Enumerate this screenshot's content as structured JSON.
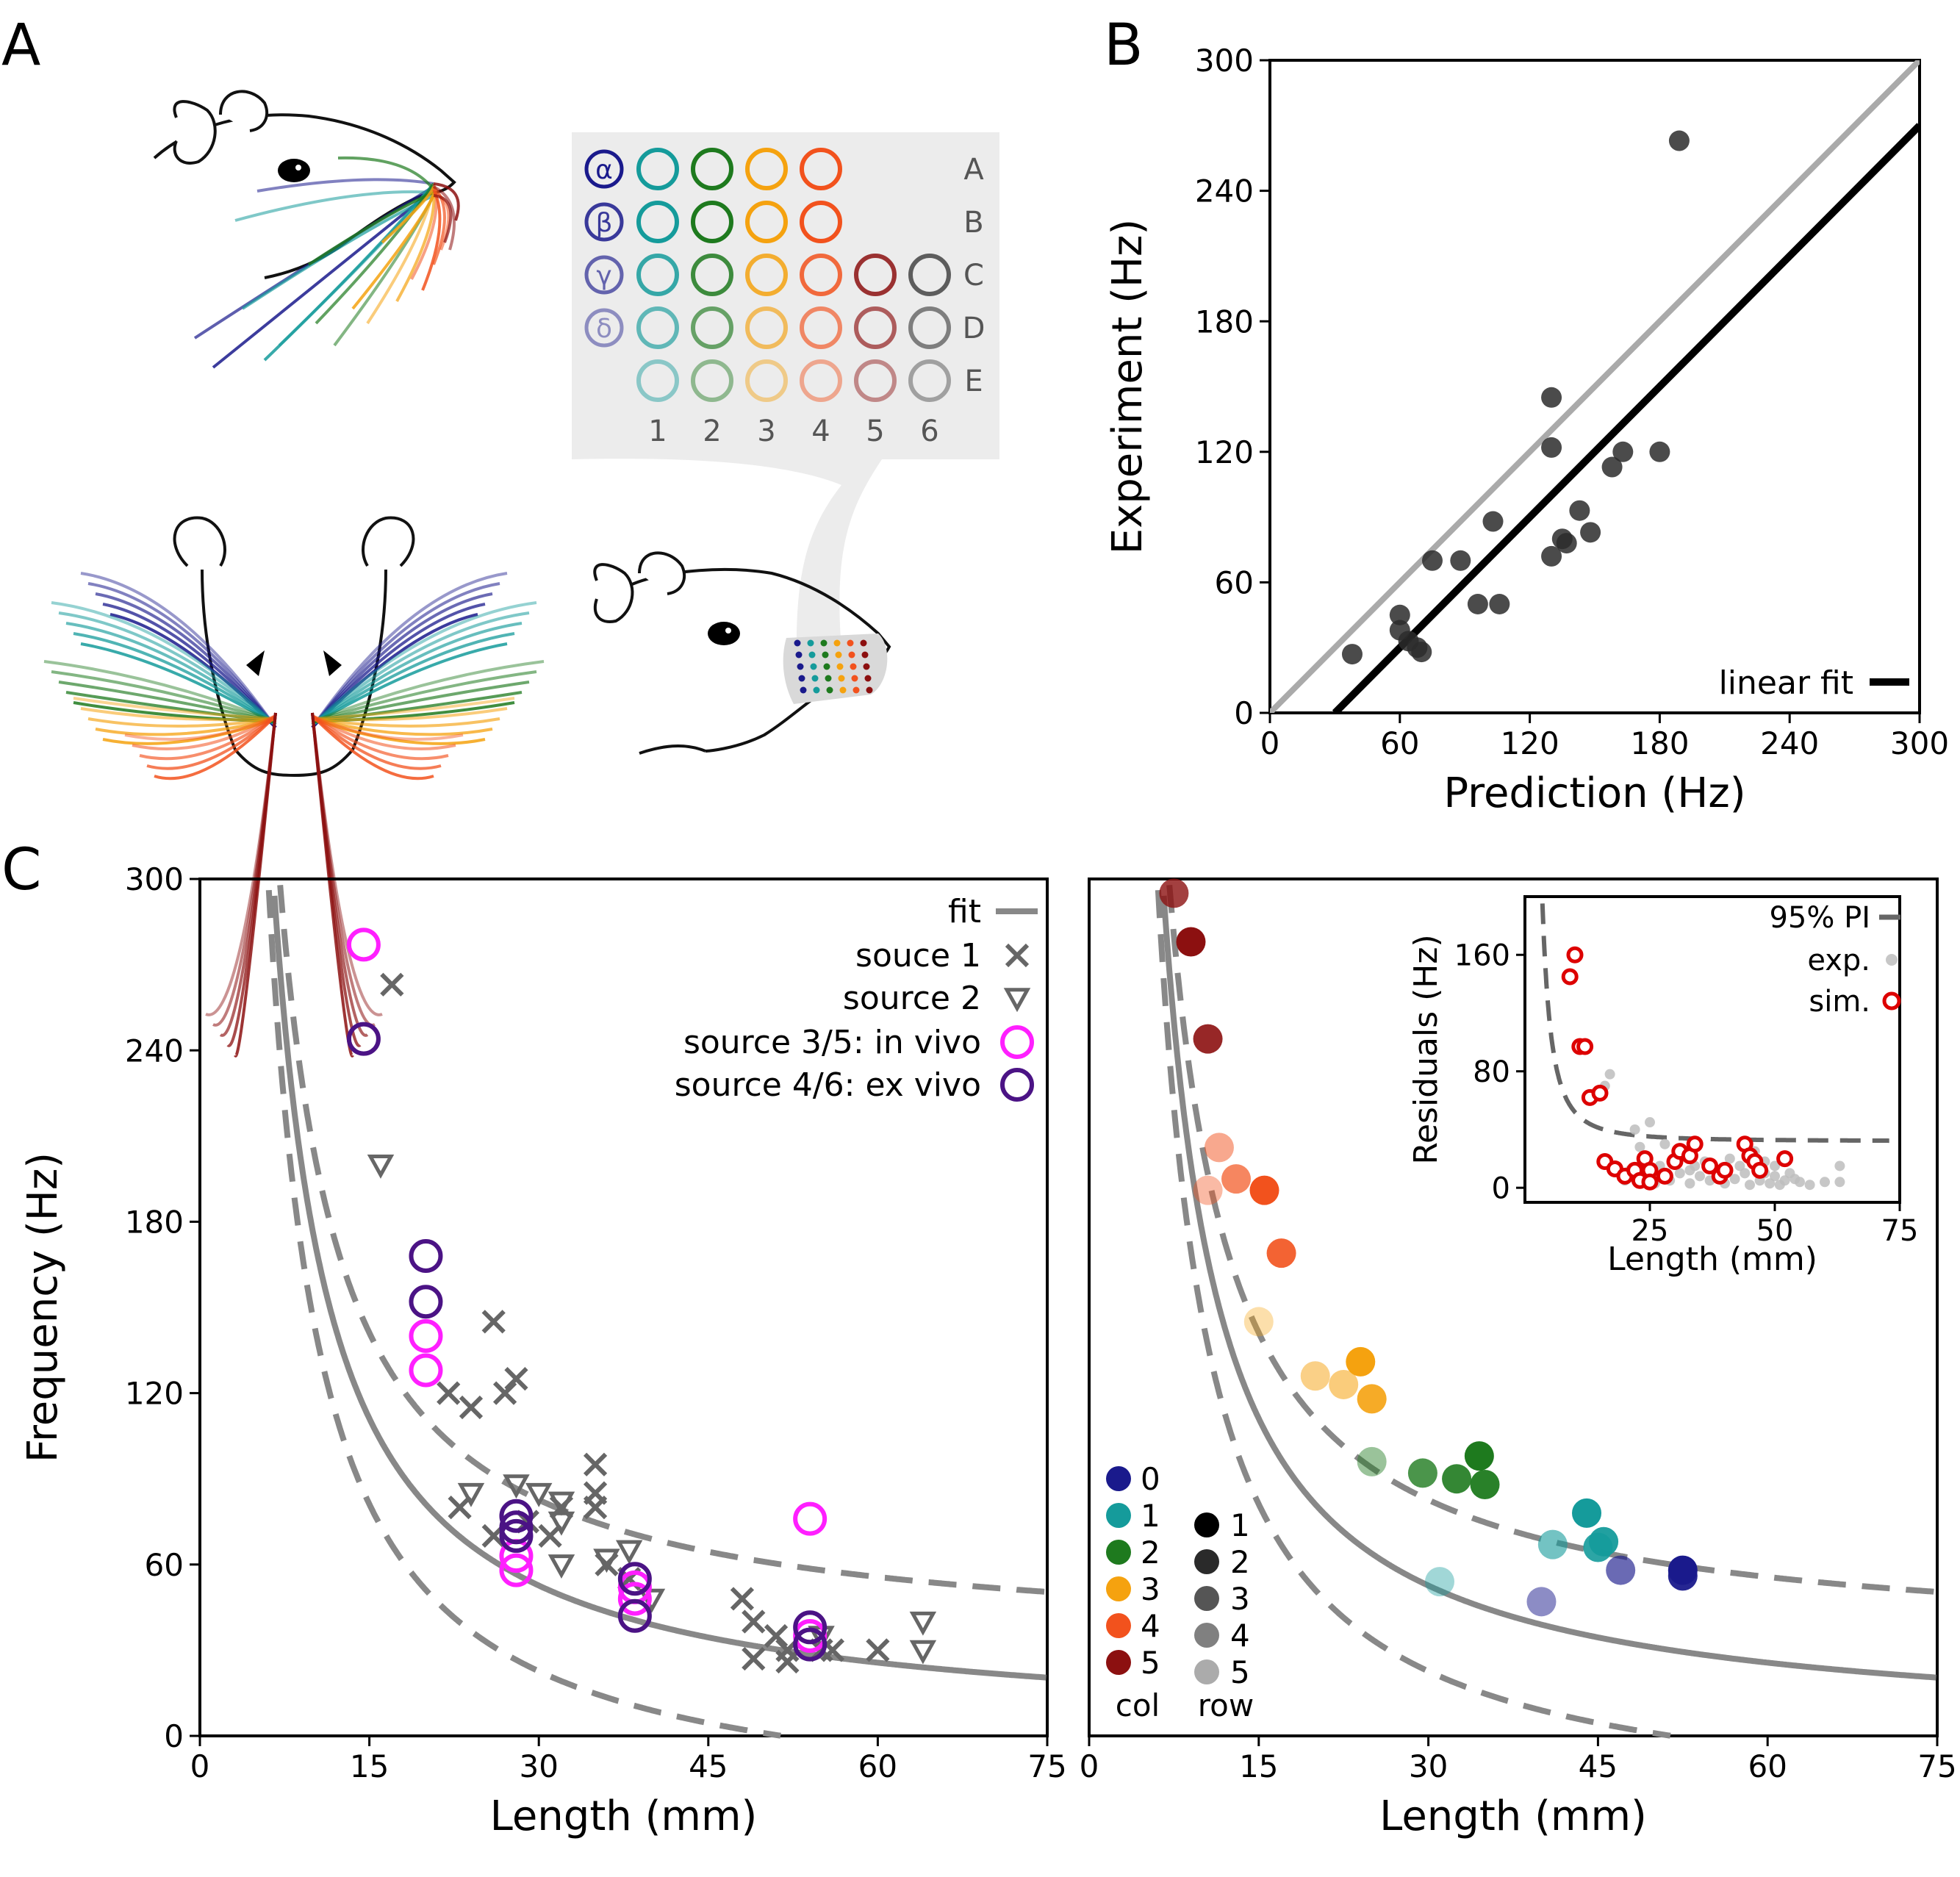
{
  "panels": {
    "a": "A",
    "b": "B",
    "c": "C"
  },
  "panel_a": {
    "grid_rows": [
      "A",
      "B",
      "C",
      "D",
      "E"
    ],
    "grid_cols": [
      "1",
      "2",
      "3",
      "4",
      "5",
      "6"
    ],
    "greek": [
      "α",
      "β",
      "γ",
      "δ"
    ],
    "col_colors": [
      "#159b9b",
      "#1e7a1e",
      "#f5a20f",
      "#f2521d",
      "#8c1010",
      "#444444"
    ],
    "greek_color": "#1a1a8c",
    "row_opacity": [
      1,
      1,
      0.85,
      0.65,
      0.45
    ],
    "whisker_colors": [
      "#1a1a8c",
      "#159b9b",
      "#1e7a1e",
      "#f5a20f",
      "#f2521d",
      "#8c1010"
    ]
  },
  "chart_data": [
    {
      "id": "B",
      "type": "scatter",
      "xlabel": "Prediction (Hz)",
      "ylabel": "Experiment (Hz)",
      "xlim": [
        0,
        300
      ],
      "ylim": [
        0,
        300
      ],
      "xticks": [
        0,
        60,
        120,
        180,
        240,
        300
      ],
      "yticks": [
        0,
        60,
        120,
        180,
        240,
        300
      ],
      "legend": [
        {
          "label": "linear fit",
          "color": "#000000"
        }
      ],
      "identity_line": {
        "color": "#aaaaaa",
        "slope": 1,
        "intercept": 0
      },
      "fit_line": {
        "color": "#000000",
        "slope": 1.0,
        "intercept": -30
      },
      "points": [
        [
          38,
          27
        ],
        [
          60,
          45
        ],
        [
          60,
          38
        ],
        [
          64,
          33
        ],
        [
          68,
          30
        ],
        [
          70,
          28
        ],
        [
          75,
          70
        ],
        [
          88,
          70
        ],
        [
          96,
          50
        ],
        [
          103,
          88
        ],
        [
          106,
          50
        ],
        [
          130,
          145
        ],
        [
          130,
          122
        ],
        [
          130,
          72
        ],
        [
          135,
          80
        ],
        [
          137,
          78
        ],
        [
          143,
          93
        ],
        [
          148,
          83
        ],
        [
          158,
          113
        ],
        [
          163,
          120
        ],
        [
          180,
          120
        ],
        [
          189,
          263
        ]
      ]
    },
    {
      "id": "C-left",
      "type": "scatter",
      "xlabel": "Length (mm)",
      "ylabel": "Frequency (Hz)",
      "xlim": [
        0,
        75
      ],
      "ylim": [
        0,
        300
      ],
      "xticks": [
        0,
        15,
        30,
        45,
        60,
        75
      ],
      "yticks": [
        0,
        60,
        120,
        180,
        240,
        300
      ],
      "legend": [
        {
          "label": "fit",
          "marker": "line"
        },
        {
          "label": "souce 1",
          "marker": "x"
        },
        {
          "label": "source 2",
          "marker": "tri"
        },
        {
          "label": "source 3/5: in vivo",
          "marker": "circ-magenta"
        },
        {
          "label": "source 4/6: ex vivo",
          "marker": "circ-purple"
        }
      ],
      "fit_curve": {
        "A": 1500,
        "x0": 1.5,
        "c": 0
      },
      "pi_offset": 30,
      "series": [
        {
          "name": "souce 1",
          "marker": "x",
          "points": [
            [
              17,
              263
            ],
            [
              26,
              145
            ],
            [
              22,
              120
            ],
            [
              24,
              115
            ],
            [
              27,
              120
            ],
            [
              28,
              125
            ],
            [
              23,
              80
            ],
            [
              26,
              70
            ],
            [
              29,
              75
            ],
            [
              31,
              70
            ],
            [
              32,
              80
            ],
            [
              35,
              95
            ],
            [
              35,
              85
            ],
            [
              35,
              80
            ],
            [
              36,
              60
            ],
            [
              38,
              55
            ],
            [
              48,
              48
            ],
            [
              49,
              40
            ],
            [
              49,
              27
            ],
            [
              51,
              35
            ],
            [
              52,
              30
            ],
            [
              52,
              26
            ],
            [
              55,
              30
            ],
            [
              56,
              30
            ],
            [
              60,
              30
            ]
          ]
        },
        {
          "name": "source 2",
          "marker": "tri",
          "points": [
            [
              16,
              200
            ],
            [
              24,
              85
            ],
            [
              28,
              88
            ],
            [
              30,
              85
            ],
            [
              32,
              82
            ],
            [
              32,
              75
            ],
            [
              32,
              60
            ],
            [
              36,
              62
            ],
            [
              38,
              65
            ],
            [
              40,
              48
            ],
            [
              55,
              35
            ],
            [
              64,
              40
            ],
            [
              64,
              30
            ]
          ]
        },
        {
          "name": "source 3/5: in vivo",
          "marker": "circ-magenta",
          "points": [
            [
              14.5,
              277
            ],
            [
              20,
              140
            ],
            [
              20,
              128
            ],
            [
              28,
              63
            ],
            [
              28,
              58
            ],
            [
              38.5,
              52
            ],
            [
              38.5,
              48
            ],
            [
              54,
              76
            ],
            [
              54,
              35
            ]
          ]
        },
        {
          "name": "source 4/6: ex vivo",
          "marker": "circ-purple",
          "points": [
            [
              14.5,
              244
            ],
            [
              20,
              168
            ],
            [
              20,
              152
            ],
            [
              28,
              77
            ],
            [
              28,
              73
            ],
            [
              28,
              70
            ],
            [
              38.5,
              55
            ],
            [
              38.5,
              42
            ],
            [
              54,
              38
            ],
            [
              54,
              32
            ]
          ]
        }
      ]
    },
    {
      "id": "C-right",
      "type": "scatter",
      "xlabel": "Length (mm)",
      "xlim": [
        0,
        75
      ],
      "ylim": [
        0,
        300
      ],
      "xticks": [
        0,
        15,
        30,
        45,
        60,
        75
      ],
      "fit_curve": {
        "A": 1500,
        "x0": 1.5,
        "c": 0
      },
      "pi_offset": 30,
      "col_legend": {
        "title": "col",
        "entries": [
          "0",
          "1",
          "2",
          "3",
          "4",
          "5"
        ],
        "colors": [
          "#1a1a8c",
          "#159b9b",
          "#1e7a1e",
          "#f5a20f",
          "#f2521d",
          "#8c1010"
        ]
      },
      "row_legend": {
        "title": "row",
        "entries": [
          "1",
          "2",
          "3",
          "4",
          "5"
        ],
        "shades": [
          "#000000",
          "#2a2a2a",
          "#555555",
          "#808080",
          "#ababab"
        ]
      },
      "points": [
        [
          7.5,
          295,
          5,
          0.8
        ],
        [
          9,
          278,
          5,
          1.0
        ],
        [
          10.5,
          244,
          5,
          0.9
        ],
        [
          11.5,
          206,
          4,
          0.5
        ],
        [
          13,
          195,
          4,
          0.7
        ],
        [
          10.5,
          191,
          4,
          0.4
        ],
        [
          15.5,
          191,
          4,
          1.0
        ],
        [
          17,
          169,
          4,
          0.9
        ],
        [
          15,
          145,
          3,
          0.35
        ],
        [
          20,
          126,
          3,
          0.5
        ],
        [
          22.5,
          123,
          3,
          0.55
        ],
        [
          24,
          131,
          3,
          1.0
        ],
        [
          25,
          118,
          3,
          0.9
        ],
        [
          25,
          96,
          2,
          0.45
        ],
        [
          29.5,
          92,
          2,
          0.8
        ],
        [
          32.5,
          90,
          2,
          0.9
        ],
        [
          34.5,
          98,
          2,
          1.0
        ],
        [
          35,
          88,
          2,
          0.95
        ],
        [
          31,
          54,
          1,
          0.4
        ],
        [
          41,
          67,
          1,
          0.6
        ],
        [
          44,
          78,
          1,
          1.0
        ],
        [
          45,
          66,
          1,
          0.9
        ],
        [
          45.5,
          68,
          1,
          0.95
        ],
        [
          40,
          47,
          0,
          0.5
        ],
        [
          47,
          58,
          0,
          0.65
        ],
        [
          52.5,
          58,
          0,
          1.0
        ],
        [
          52.5,
          56,
          0,
          0.95
        ]
      ]
    },
    {
      "id": "C-inset",
      "type": "scatter",
      "xlabel": "Length (mm)",
      "ylabel": "Residuals (Hz)",
      "xlim": [
        0,
        75
      ],
      "ylim": [
        -10,
        200
      ],
      "xticks": [
        25,
        50,
        75
      ],
      "yticks": [
        0,
        80,
        160
      ],
      "legend": [
        {
          "label": "95% PI",
          "marker": "dash"
        },
        {
          "label": "exp.",
          "marker": "dot-gray"
        },
        {
          "label": "sim.",
          "marker": "ring-red"
        }
      ],
      "pi_curve": {
        "A": 2000,
        "x0": 0,
        "c": 32,
        "xmin": 2
      },
      "series": [
        {
          "name": "exp.",
          "marker": "dot-gray",
          "points": [
            [
              14,
              65
            ],
            [
              16,
              70
            ],
            [
              17,
              78
            ],
            [
              20,
              5
            ],
            [
              21,
              12
            ],
            [
              22,
              40
            ],
            [
              23,
              28
            ],
            [
              24,
              22
            ],
            [
              25,
              45
            ],
            [
              26,
              8
            ],
            [
              27,
              15
            ],
            [
              28,
              30
            ],
            [
              29,
              5
            ],
            [
              30,
              20
            ],
            [
              31,
              10
            ],
            [
              32,
              25
            ],
            [
              33,
              3
            ],
            [
              34,
              15
            ],
            [
              35,
              8
            ],
            [
              36,
              18
            ],
            [
              37,
              5
            ],
            [
              38,
              12
            ],
            [
              39,
              8
            ],
            [
              40,
              3
            ],
            [
              41,
              20
            ],
            [
              42,
              6
            ],
            [
              43,
              15
            ],
            [
              44,
              10
            ],
            [
              45,
              2
            ],
            [
              46,
              25
            ],
            [
              47,
              5
            ],
            [
              48,
              18
            ],
            [
              49,
              3
            ],
            [
              50,
              8
            ],
            [
              51,
              2
            ],
            [
              52,
              5
            ],
            [
              53,
              10
            ],
            [
              55,
              4
            ],
            [
              57,
              2
            ],
            [
              60,
              4
            ],
            [
              63,
              15
            ],
            [
              63,
              4
            ],
            [
              18,
              12
            ],
            [
              26,
              3
            ],
            [
              33,
              12
            ],
            [
              40,
              12
            ],
            [
              48,
              10
            ],
            [
              50,
              15
            ],
            [
              54,
              6
            ]
          ]
        },
        {
          "name": "sim.",
          "marker": "ring-red",
          "points": [
            [
              9,
              145
            ],
            [
              10,
              160
            ],
            [
              11,
              97
            ],
            [
              12,
              97
            ],
            [
              13,
              62
            ],
            [
              15,
              65
            ],
            [
              16,
              18
            ],
            [
              18,
              13
            ],
            [
              20,
              8
            ],
            [
              22,
              12
            ],
            [
              23,
              5
            ],
            [
              24,
              20
            ],
            [
              25,
              12
            ],
            [
              25,
              4
            ],
            [
              28,
              8
            ],
            [
              30,
              18
            ],
            [
              31,
              25
            ],
            [
              33,
              22
            ],
            [
              34,
              30
            ],
            [
              37,
              15
            ],
            [
              39,
              8
            ],
            [
              40,
              12
            ],
            [
              44,
              30
            ],
            [
              45,
              22
            ],
            [
              46,
              18
            ],
            [
              47,
              12
            ],
            [
              52,
              20
            ]
          ]
        }
      ]
    }
  ]
}
